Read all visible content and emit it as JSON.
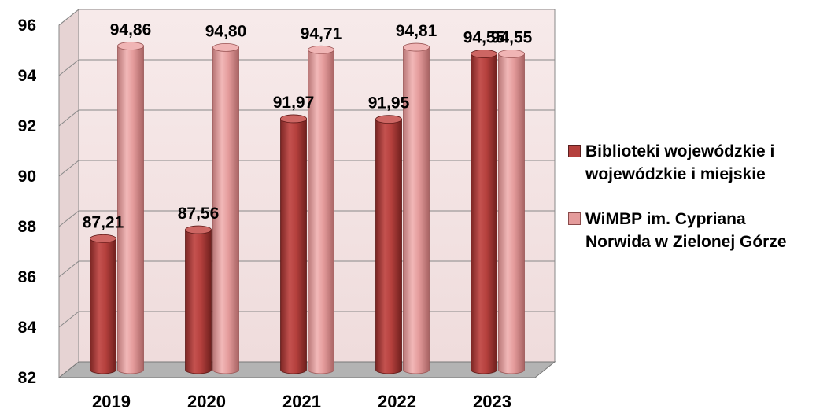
{
  "chart_data": {
    "type": "bar",
    "categories": [
      "2019",
      "2020",
      "2021",
      "2022",
      "2023"
    ],
    "series": [
      {
        "name": "Biblioteki wojewódzkie i wojewódzkie i miejskie",
        "values": [
          87.21,
          87.56,
          91.97,
          91.95,
          94.55
        ],
        "labels": [
          "87,21",
          "87,56",
          "91,97",
          "91,95",
          "94,55"
        ]
      },
      {
        "name": "WiMBP im. Cypriana Norwida w Zielonej Górze",
        "values": [
          94.86,
          94.8,
          94.71,
          94.81,
          94.55
        ],
        "labels": [
          "94,86",
          "94,80",
          "94,71",
          "94,81",
          "94,55"
        ]
      }
    ],
    "ylim": [
      82,
      96
    ],
    "yticks": [
      "82",
      "84",
      "86",
      "88",
      "90",
      "92",
      "94",
      "96"
    ],
    "grid": true,
    "legend_position": "right",
    "colors": {
      "series1": "#b5403d",
      "series2": "#e49b9b",
      "wall": "#f4e4e4",
      "floor": "#b3b3b3",
      "grid": "#888888"
    },
    "style": "3d-cylinder"
  }
}
